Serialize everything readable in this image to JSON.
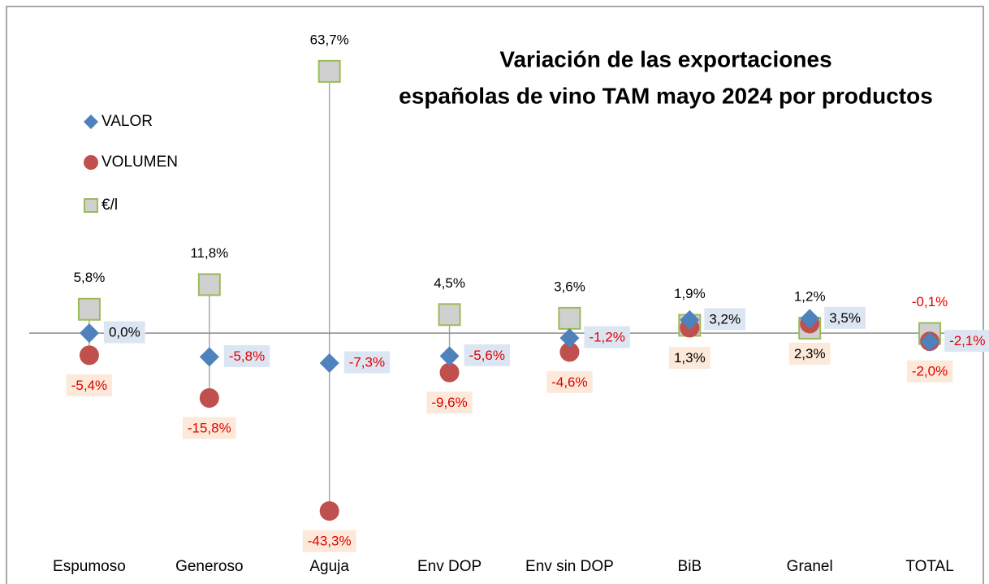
{
  "chart_data": {
    "type": "scatter",
    "title": [
      "Variación de las exportaciones",
      "españolas de vino TAM mayo 2024 por productos"
    ],
    "categories": [
      "Espumoso",
      "Generoso",
      "Aguja",
      "Env DOP",
      "Env sin DOP",
      "BiB",
      "Granel",
      "TOTAL"
    ],
    "ylim": [
      -50,
      70
    ],
    "legend": "top-left",
    "series": [
      {
        "name": "VALOR",
        "color": "#4f81bd",
        "marker": "diamond",
        "label_position": "right",
        "label_box": "#dce6f2",
        "values": [
          0.0,
          -5.8,
          -7.3,
          -5.6,
          -1.2,
          3.2,
          3.5,
          -2.1
        ],
        "value_labels": [
          "0,0%",
          "-5,8%",
          "-7,3%",
          "-5,6%",
          "-1,2%",
          "3,2%",
          "3,5%",
          "-2,1%"
        ]
      },
      {
        "name": "VOLUMEN",
        "color": "#c0504d",
        "marker": "circle",
        "label_position": "below",
        "label_box": "#fde9d9",
        "values": [
          -5.4,
          -15.8,
          -43.3,
          -9.6,
          -4.6,
          1.3,
          2.3,
          -2.0
        ],
        "value_labels": [
          "-5,4%",
          "-15,8%",
          "-43,3%",
          "-9,6%",
          "-4,6%",
          "1,3%",
          "2,3%",
          "-2,0%"
        ]
      },
      {
        "name": "€/l",
        "color": "#d0d0d0",
        "edge": "#9bbb59",
        "marker": "square",
        "label_position": "above",
        "values": [
          5.8,
          11.8,
          63.7,
          4.5,
          3.6,
          1.9,
          1.2,
          -0.1
        ],
        "value_labels": [
          "5,8%",
          "11,8%",
          "63,7%",
          "4,5%",
          "3,6%",
          "1,9%",
          "1,2%",
          "-0,1%"
        ]
      }
    ]
  }
}
